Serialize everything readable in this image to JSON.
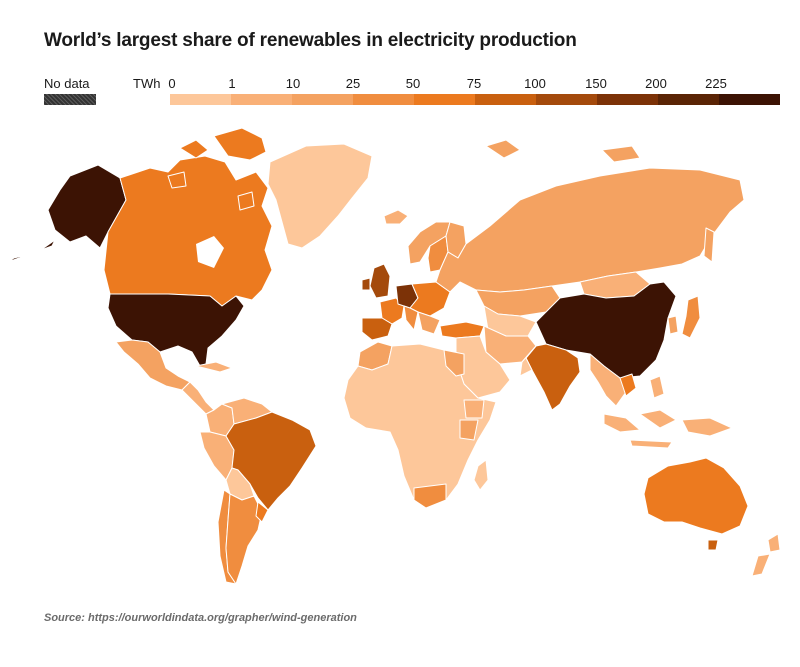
{
  "title": "World’s largest share of renewables in electricity production",
  "legend": {
    "no_data_label": "No data",
    "unit": "TWh",
    "ticks": [
      "0",
      "1",
      "10",
      "25",
      "50",
      "75",
      "100",
      "150",
      "200",
      "225"
    ],
    "colors": [
      "#fdc79a",
      "#f9b077",
      "#f4a261",
      "#f08d3f",
      "#ec7a1f",
      "#c9600f",
      "#a44a0c",
      "#7c3207",
      "#5a2405",
      "#3c1304"
    ],
    "no_data_color": "#3b3b3b"
  },
  "source": "Source: https://ourworldindata.org/grapher/wind-generation",
  "map": {
    "ocean_color": "#ffffff",
    "border_color": "#ffffff",
    "regions": [
      {
        "name": "Alaska",
        "tier": 9
      },
      {
        "name": "Canada",
        "tier": 4
      },
      {
        "name": "Greenland",
        "tier": 0
      },
      {
        "name": "United States",
        "tier": 9
      },
      {
        "name": "Mexico",
        "tier": 2
      },
      {
        "name": "Central America",
        "tier": 1
      },
      {
        "name": "Colombia",
        "tier": 1
      },
      {
        "name": "Venezuela",
        "tier": 1
      },
      {
        "name": "Peru",
        "tier": 1
      },
      {
        "name": "Brazil",
        "tier": 5
      },
      {
        "name": "Uruguay",
        "tier": 4
      },
      {
        "name": "Argentina",
        "tier": 3
      },
      {
        "name": "Chile",
        "tier": 3
      },
      {
        "name": "Bolivia",
        "tier": 0
      },
      {
        "name": "Iceland",
        "tier": 1
      },
      {
        "name": "United Kingdom",
        "tier": 6
      },
      {
        "name": "Spain",
        "tier": 5
      },
      {
        "name": "Germany",
        "tier": 7
      },
      {
        "name": "France",
        "tier": 4
      },
      {
        "name": "Sweden",
        "tier": 3
      },
      {
        "name": "Norway",
        "tier": 2
      },
      {
        "name": "Turkey",
        "tier": 4
      },
      {
        "name": "Russia",
        "tier": 2
      },
      {
        "name": "Kazakhstan",
        "tier": 2
      },
      {
        "name": "Central Asia",
        "tier": 0
      },
      {
        "name": "Middle East",
        "tier": 0
      },
      {
        "name": "Iran",
        "tier": 1
      },
      {
        "name": "India",
        "tier": 5
      },
      {
        "name": "China",
        "tier": 9
      },
      {
        "name": "Mongolia",
        "tier": 1
      },
      {
        "name": "Japan",
        "tier": 3
      },
      {
        "name": "Korea",
        "tier": 2
      },
      {
        "name": "Southeast Asia",
        "tier": 1
      },
      {
        "name": "Vietnam",
        "tier": 4
      },
      {
        "name": "Indonesia",
        "tier": 1
      },
      {
        "name": "Philippines",
        "tier": 1
      },
      {
        "name": "Africa",
        "tier": 0
      },
      {
        "name": "Morocco",
        "tier": 2
      },
      {
        "name": "Egypt",
        "tier": 2
      },
      {
        "name": "Ethiopia",
        "tier": 1
      },
      {
        "name": "Kenya",
        "tier": 2
      },
      {
        "name": "South Africa",
        "tier": 3
      },
      {
        "name": "Madagascar",
        "tier": 0
      },
      {
        "name": "Australia",
        "tier": 4
      },
      {
        "name": "Tasmania",
        "tier": 5
      },
      {
        "name": "New Zealand",
        "tier": 1
      }
    ]
  }
}
